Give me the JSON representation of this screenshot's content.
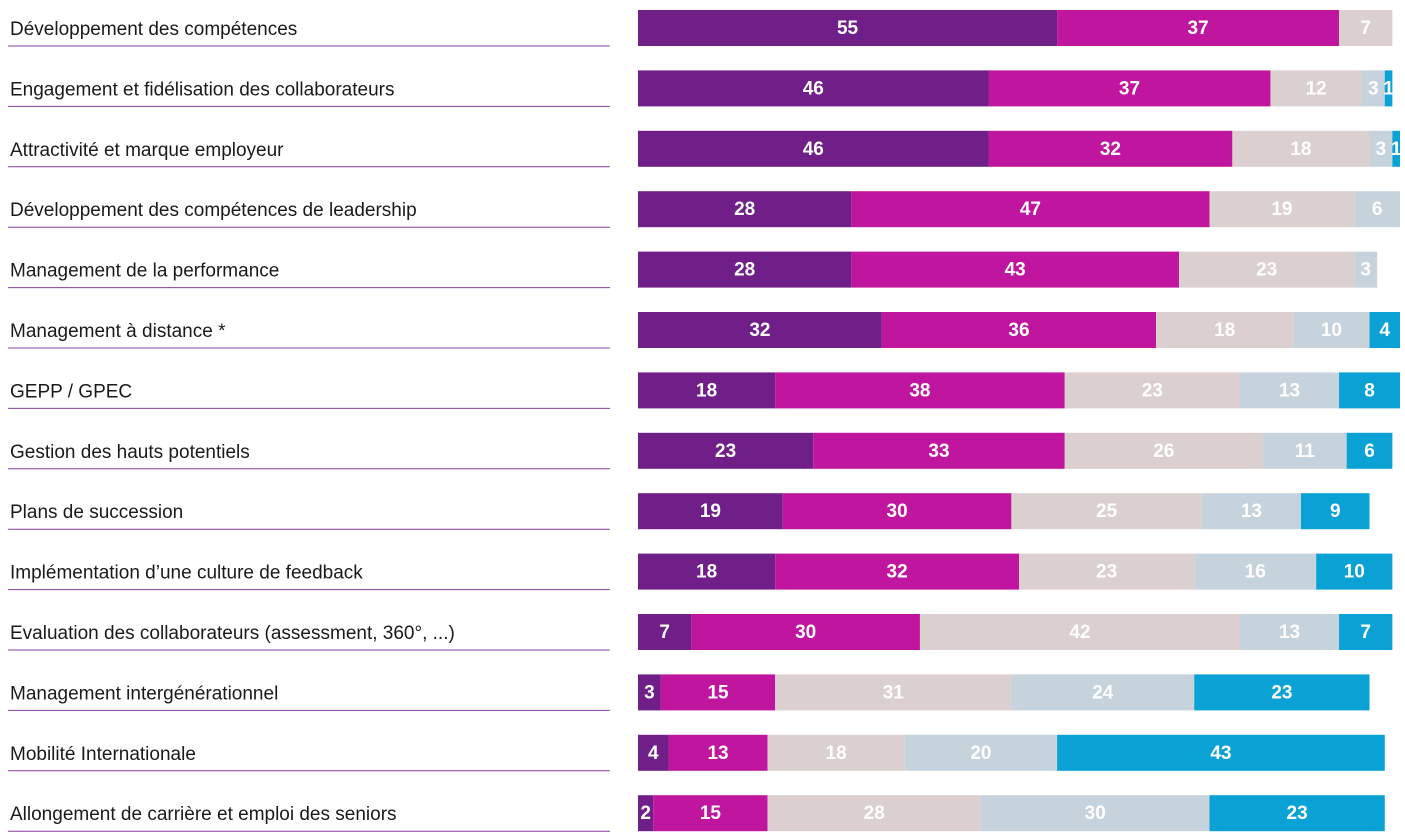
{
  "chart_data": {
    "type": "stacked-bar",
    "categories": [
      "Développement des compétences",
      "Engagement et fidélisation des collaborateurs",
      "Attractivité et marque employeur",
      "Développement des compétences de leadership",
      "Management de la performance",
      "Management à distance *",
      "GEPP / GPEC",
      "Gestion des hauts potentiels",
      "Plans de succession",
      "Implémentation d’une culture de feedback",
      "Evaluation des collaborateurs (assessment, 360°, ...)",
      "Management intergénérationnel",
      "Mobilité Internationale",
      "Allongement de carrière et emploi des seniors"
    ],
    "series": [
      {
        "color": "#6f1f87",
        "values": [
          55,
          46,
          46,
          28,
          28,
          32,
          18,
          23,
          19,
          18,
          7,
          3,
          4,
          2
        ]
      },
      {
        "color": "#c0169f",
        "values": [
          37,
          37,
          32,
          47,
          43,
          36,
          38,
          33,
          30,
          32,
          30,
          15,
          13,
          15
        ]
      },
      {
        "color": "#dccfcf",
        "values": [
          7,
          12,
          18,
          19,
          23,
          18,
          23,
          26,
          25,
          23,
          42,
          31,
          18,
          28
        ]
      },
      {
        "color": "#c6d3dc",
        "values": [
          null,
          3,
          3,
          6,
          3,
          10,
          13,
          11,
          13,
          16,
          13,
          24,
          20,
          30
        ]
      },
      {
        "color": "#0aa1d4",
        "values": [
          null,
          1,
          1,
          null,
          null,
          4,
          8,
          6,
          9,
          10,
          7,
          23,
          43,
          23
        ]
      }
    ]
  }
}
